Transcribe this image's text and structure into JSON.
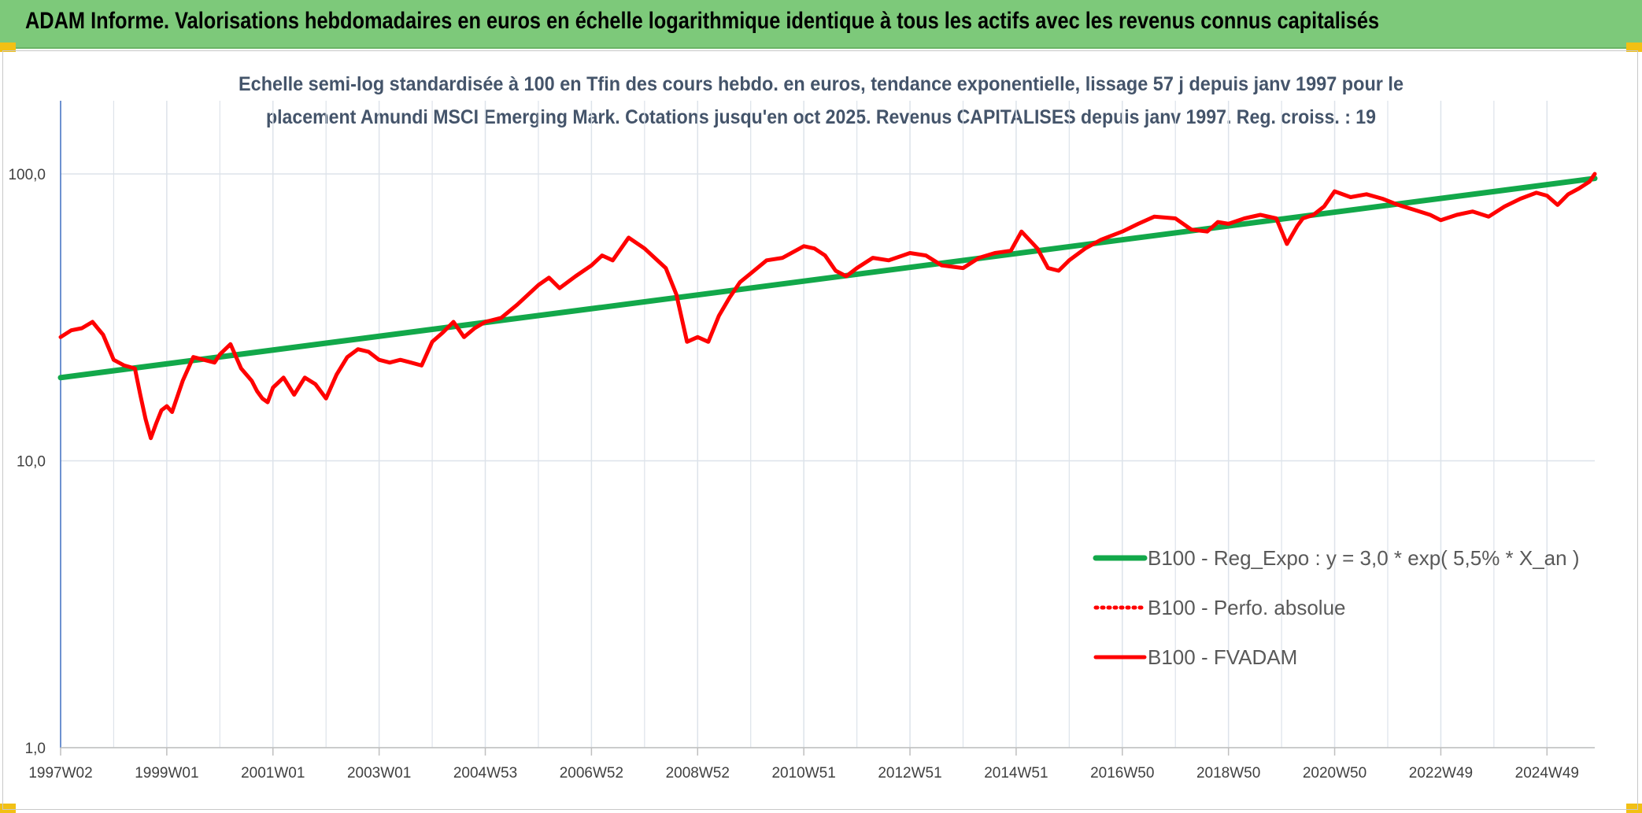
{
  "header": {
    "title": "ADAM Informe. Valorisations hebdomadaires en euros en échelle logarithmique identique à tous les actifs avec les revenus connus capitalisés"
  },
  "colors": {
    "header_bg": "#7dc97a",
    "corner_accent": "#f2c014",
    "regression": "#12a84a",
    "series": "#ff0000",
    "subtitle": "#44546a",
    "grid": "#dde3ea",
    "axis": "#4472c4"
  },
  "chart_data": {
    "type": "line",
    "title_lines": [
      "Echelle semi-log standardisée à 100 en Tfin des cours hebdo. en euros, tendance exponentielle, lissage 57 j depuis janv 1997 pour le",
      "placement Amundi MSCI Emerging Mark. Cotations jusqu'en oct 2025. Revenus CAPITALISES depuis janv 1997. Reg. croiss. : 19"
    ],
    "y_scale": "log",
    "ylim": [
      1,
      180
    ],
    "y_ticks": [
      {
        "value": 1,
        "label": "1,0"
      },
      {
        "value": 10,
        "label": "10,0"
      },
      {
        "value": 100,
        "label": "100,0"
      }
    ],
    "xlim": [
      1997.0,
      2025.9
    ],
    "x_ticks": [
      {
        "value": 1997.0,
        "label": "1997W02"
      },
      {
        "value": 1999.0,
        "label": "1999W01"
      },
      {
        "value": 2001.0,
        "label": "2001W01"
      },
      {
        "value": 2003.0,
        "label": "2003W01"
      },
      {
        "value": 2005.0,
        "label": "2004W53"
      },
      {
        "value": 2007.0,
        "label": "2006W52"
      },
      {
        "value": 2009.0,
        "label": "2008W52"
      },
      {
        "value": 2011.0,
        "label": "2010W51"
      },
      {
        "value": 2013.0,
        "label": "2012W51"
      },
      {
        "value": 2015.0,
        "label": "2014W51"
      },
      {
        "value": 2017.0,
        "label": "2016W50"
      },
      {
        "value": 2019.0,
        "label": "2018W50"
      },
      {
        "value": 2021.0,
        "label": "2020W50"
      },
      {
        "value": 2023.0,
        "label": "2022W49"
      },
      {
        "value": 2025.0,
        "label": "2024W49"
      }
    ],
    "vertical_grid": true,
    "legend_position": "bottom-right",
    "series": [
      {
        "name": "B100 - Reg_Expo : y = 3,0 * exp( 5,5% *  X_an )",
        "color": "#12a84a",
        "style": "solid",
        "x": [
          1997.0,
          2025.9
        ],
        "y": [
          19.5,
          96.5
        ]
      },
      {
        "name": "B100 - Perfo. absolue",
        "color": "#ff0000",
        "style": "dotted",
        "x": [],
        "y": []
      },
      {
        "name": "B100 - FVADAM",
        "color": "#ff0000",
        "style": "solid",
        "x": [
          1997.0,
          1997.2,
          1997.4,
          1997.6,
          1997.8,
          1998.0,
          1998.2,
          1998.4,
          1998.5,
          1998.6,
          1998.7,
          1998.8,
          1998.9,
          1999.0,
          1999.1,
          1999.3,
          1999.5,
          1999.7,
          1999.9,
          2000.0,
          2000.2,
          2000.4,
          2000.6,
          2000.7,
          2000.8,
          2000.9,
          2001.0,
          2001.2,
          2001.4,
          2001.6,
          2001.8,
          2002.0,
          2002.2,
          2002.4,
          2002.6,
          2002.8,
          2003.0,
          2003.2,
          2003.4,
          2003.6,
          2003.8,
          2004.0,
          2004.2,
          2004.4,
          2004.6,
          2004.8,
          2005.0,
          2005.3,
          2005.6,
          2006.0,
          2006.2,
          2006.4,
          2006.7,
          2007.0,
          2007.2,
          2007.4,
          2007.7,
          2008.0,
          2008.4,
          2008.6,
          2008.8,
          2009.0,
          2009.2,
          2009.4,
          2009.6,
          2009.8,
          2010.0,
          2010.3,
          2010.6,
          2011.0,
          2011.2,
          2011.4,
          2011.6,
          2011.8,
          2012.0,
          2012.3,
          2012.6,
          2013.0,
          2013.3,
          2013.6,
          2014.0,
          2014.3,
          2014.6,
          2014.9,
          2015.1,
          2015.4,
          2015.6,
          2015.8,
          2016.0,
          2016.3,
          2016.6,
          2017.0,
          2017.3,
          2017.6,
          2018.0,
          2018.3,
          2018.6,
          2018.8,
          2019.0,
          2019.3,
          2019.6,
          2019.9,
          2020.1,
          2020.3,
          2020.4,
          2020.6,
          2020.8,
          2021.0,
          2021.3,
          2021.6,
          2021.9,
          2022.2,
          2022.5,
          2022.8,
          2023.0,
          2023.3,
          2023.6,
          2023.9,
          2024.2,
          2024.5,
          2024.8,
          2025.0,
          2025.2,
          2025.4,
          2025.6,
          2025.8,
          2025.9
        ],
        "y": [
          27.0,
          28.5,
          29.0,
          30.5,
          27.5,
          22.5,
          21.5,
          21.0,
          17.0,
          14.0,
          12.0,
          13.5,
          15.0,
          15.5,
          14.8,
          19.0,
          23.0,
          22.5,
          22.0,
          23.5,
          25.5,
          21.0,
          19.0,
          17.5,
          16.5,
          16.0,
          18.0,
          19.5,
          17.0,
          19.5,
          18.5,
          16.5,
          20.0,
          23.0,
          24.5,
          24.0,
          22.5,
          22.0,
          22.5,
          22.0,
          21.5,
          26.0,
          28.0,
          30.5,
          27.0,
          29.0,
          30.5,
          31.5,
          35.0,
          41.0,
          43.5,
          40.0,
          44.0,
          48.0,
          52.0,
          50.0,
          60.0,
          55.0,
          47.0,
          38.0,
          26.0,
          27.0,
          26.0,
          32.0,
          37.0,
          42.0,
          45.0,
          50.0,
          51.0,
          56.0,
          55.0,
          52.0,
          46.0,
          44.0,
          47.0,
          51.0,
          50.0,
          53.0,
          52.0,
          48.0,
          47.0,
          51.0,
          53.0,
          54.0,
          63.0,
          55.0,
          47.0,
          46.0,
          50.0,
          55.0,
          59.0,
          63.0,
          67.0,
          71.0,
          70.0,
          64.0,
          63.0,
          68.0,
          67.0,
          70.0,
          72.0,
          70.0,
          57.0,
          66.0,
          70.0,
          72.0,
          77.0,
          87.0,
          83.0,
          85.0,
          82.0,
          78.0,
          75.0,
          72.0,
          69.0,
          72.0,
          74.0,
          71.0,
          77.0,
          82.0,
          86.0,
          84.0,
          78.0,
          85.0,
          89.0,
          94.0,
          100.0
        ]
      }
    ]
  }
}
